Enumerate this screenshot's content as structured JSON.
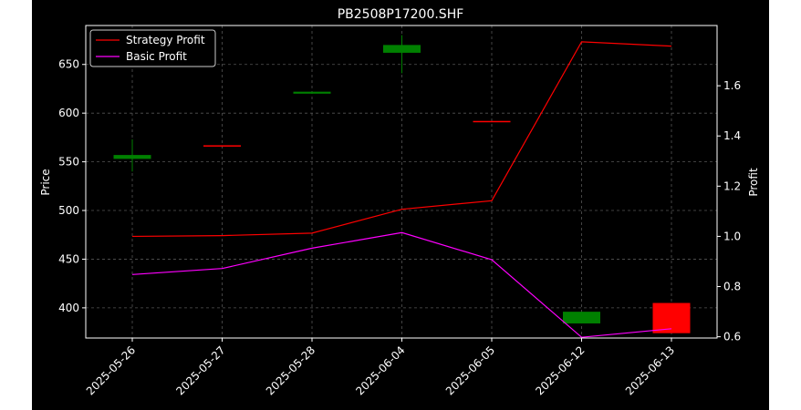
{
  "chart_data": {
    "type": "candlestick+line",
    "title": "PB2508P17200.SHF",
    "ylabel": "Price",
    "y2label": "Profit",
    "categories": [
      "2025-05-26",
      "2025-05-27",
      "2025-05-28",
      "2025-06-04",
      "2025-06-05",
      "2025-06-12",
      "2025-06-13"
    ],
    "ylim": [
      369,
      690
    ],
    "y2lim": [
      0.595,
      1.84
    ],
    "yticks": [
      400,
      450,
      500,
      550,
      600,
      650
    ],
    "y2ticks": [
      0.6,
      0.8,
      1.0,
      1.2,
      1.4,
      1.6
    ],
    "grid": true,
    "legend_position": "top-left",
    "candles": [
      {
        "date": "2025-05-26",
        "open": 553,
        "high": 573,
        "low": 540,
        "close": 557,
        "color": "#008000"
      },
      {
        "date": "2025-05-27",
        "open": 567,
        "high": 567,
        "low": 567,
        "close": 567,
        "color": "#ff0000"
      },
      {
        "date": "2025-05-28",
        "open": 620,
        "high": 622,
        "low": 620,
        "close": 622,
        "color": "#008000"
      },
      {
        "date": "2025-06-04",
        "open": 662,
        "high": 680,
        "low": 641,
        "close": 670,
        "color": "#008000"
      },
      {
        "date": "2025-06-05",
        "open": 592,
        "high": 592,
        "low": 592,
        "close": 592,
        "color": "#ff0000"
      },
      {
        "date": "2025-06-12",
        "open": 384,
        "high": 396,
        "low": 384,
        "close": 396,
        "color": "#008000"
      },
      {
        "date": "2025-06-13",
        "open": 405,
        "high": 405,
        "low": 374,
        "close": 374,
        "color": "#ff0000"
      }
    ],
    "series": [
      {
        "name": "Strategy Profit",
        "color": "#ff0000",
        "axis": "right",
        "values": [
          1.0,
          1.003,
          1.013,
          1.108,
          1.142,
          1.775,
          1.758
        ]
      },
      {
        "name": "Basic Profit",
        "color": "#ff00ff",
        "axis": "right",
        "values": [
          0.848,
          0.872,
          0.953,
          1.015,
          0.907,
          0.598,
          0.632
        ]
      }
    ]
  }
}
